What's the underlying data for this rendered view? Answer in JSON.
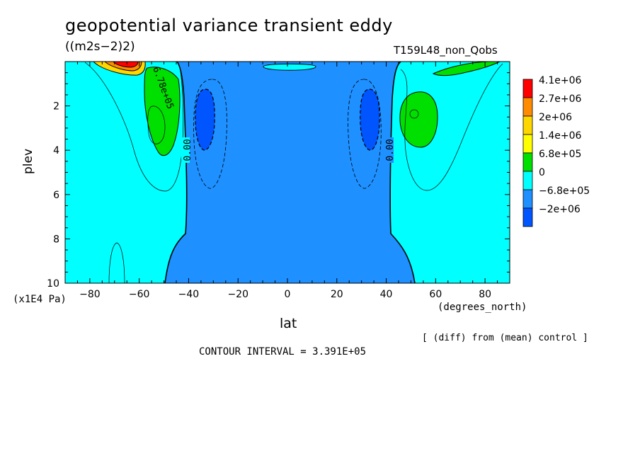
{
  "chart_data": {
    "type": "contour",
    "title": "geopotential variance transient eddy",
    "units": "((m2s−2)2)",
    "run_label": "T159L48_non_Qobs",
    "xlabel": "lat",
    "xunit": "(degrees_north)",
    "ylabel": "plev",
    "yunit": "(x1E4 Pa)",
    "xlim": [
      -90,
      90
    ],
    "ylim": [
      10,
      0
    ],
    "xticks": [
      -80,
      -60,
      -40,
      -20,
      0,
      20,
      40,
      60,
      80
    ],
    "xtick_labels": [
      "−80",
      "−60",
      "−40",
      "−20",
      "0",
      "20",
      "40",
      "60",
      "80"
    ],
    "yticks": [
      2,
      4,
      6,
      8,
      10
    ],
    "ytick_labels": [
      "2",
      "4",
      "6",
      "8",
      "10"
    ],
    "contour_interval_label": "CONTOUR INTERVAL = 3.391E+05",
    "note": "[ (diff) from (mean) control ]",
    "contour_labels": [
      "6.78e+05",
      "0.00",
      "0.00"
    ],
    "legend": {
      "levels": [
        "4.1e+06",
        "2.7e+06",
        "2e+06",
        "1.4e+06",
        "6.8e+05",
        "0",
        "−6.8e+05",
        "−2e+06"
      ],
      "colors": [
        "#ff0000",
        "#ff8c00",
        "#ffd700",
        "#ffff00",
        "#00e000",
        "#00ffff",
        "#1e90ff",
        "#0055ff"
      ]
    },
    "colors": {
      "positive_small": "#00ffff",
      "negative_small": "#1e90ff",
      "negative_large": "#0055ff",
      "positive_mid": "#00e000",
      "positive_high": "#ffd700",
      "positive_higher": "#ff8c00",
      "positive_max": "#ff0000"
    },
    "features": [
      {
        "name": "negative-core-south",
        "lat": -33,
        "plev": 2.7,
        "value": "-6.8e+05"
      },
      {
        "name": "negative-core-north",
        "lat": 33,
        "plev": 2.7,
        "value": "-6.8e+05"
      },
      {
        "name": "positive-core-south",
        "lat": -50,
        "plev": 2.7,
        "value": "6.8e+05"
      },
      {
        "name": "positive-core-north",
        "lat": 51,
        "plev": 2.5,
        "value": "6.8e+05"
      }
    ]
  }
}
